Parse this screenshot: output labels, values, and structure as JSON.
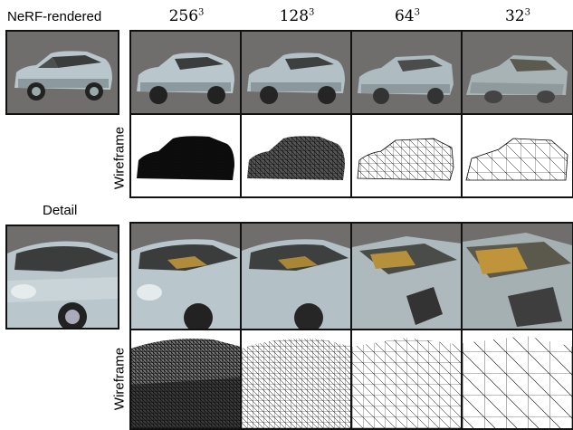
{
  "top_section": {
    "reference_label": "NeRF-rendered",
    "resolutions": [
      {
        "base": "256",
        "exp": "3"
      },
      {
        "base": "128",
        "exp": "3"
      },
      {
        "base": "64",
        "exp": "3"
      },
      {
        "base": "32",
        "exp": "3"
      }
    ],
    "wireframe_label": "Wireframe"
  },
  "bottom_section": {
    "reference_label": "Detail",
    "wireframe_label": "Wireframe"
  },
  "colors": {
    "background": "#ffffff",
    "render_bg": "#6f6e6c",
    "car_body": "#b9c7cc",
    "car_shadow": "#7c8a90",
    "window": "#3a3d3c",
    "frame_border": "#111111",
    "wire_stroke": "#000000"
  }
}
